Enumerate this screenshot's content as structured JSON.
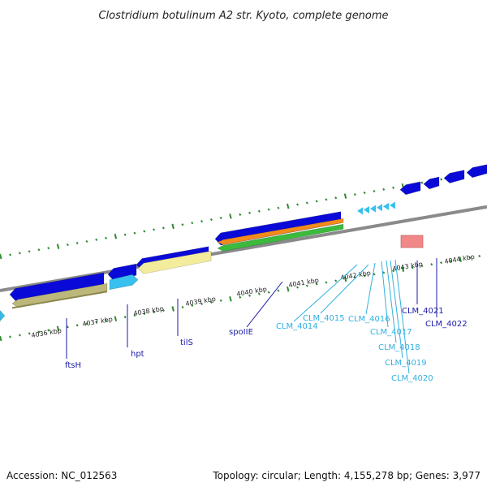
{
  "title": "Clostridium botulinum A2 str. Kyoto, complete genome",
  "footer": {
    "accession": "Accession: NC_012563",
    "summary": "Topology: circular; Length: 4,155,278 bp; Genes: 3,977"
  },
  "colors": {
    "cds_dark": "#0a0ad8",
    "cds_light": "#38c0ee",
    "gene_khaki": "#bcb77a",
    "gene_paleyellow": "#f2ec9c",
    "gene_orange": "#f28a1c",
    "gene_green": "#3cba3c",
    "gene_pink": "#f08888",
    "backbone": "#8a8a8a",
    "tick_dot": "#2e8a2e",
    "label_dark": "#1a1aa8",
    "label_light": "#30b0e0"
  },
  "ticks": [
    "4036 kbp",
    "4037 kbp",
    "4038 kbp",
    "4039 kbp",
    "4040 kbp",
    "4041 kbp",
    "4042 kbp",
    "4043 kbp",
    "4044 kbp"
  ],
  "genes": [
    {
      "label": "ftsH",
      "color": "dark"
    },
    {
      "label": "hpt",
      "color": "dark"
    },
    {
      "label": "tilS",
      "color": "dark"
    },
    {
      "label": "spoIIE",
      "color": "dark"
    },
    {
      "label": "CLM_4014",
      "color": "light"
    },
    {
      "label": "CLM_4015",
      "color": "light"
    },
    {
      "label": "CLM_4016",
      "color": "light"
    },
    {
      "label": "CLM_4017",
      "color": "light"
    },
    {
      "label": "CLM_4018",
      "color": "light"
    },
    {
      "label": "CLM_4019",
      "color": "light"
    },
    {
      "label": "CLM_4020",
      "color": "light"
    },
    {
      "label": "CLM_4021",
      "color": "dark"
    },
    {
      "label": "CLM_4022",
      "color": "dark"
    }
  ]
}
